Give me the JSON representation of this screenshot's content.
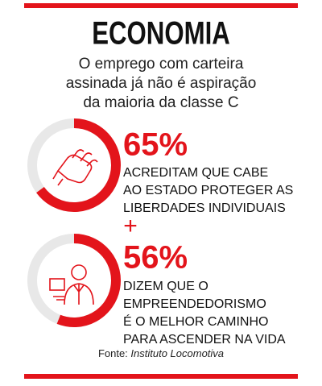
{
  "header": {
    "title": "ECONOMIA",
    "subtitle": [
      "O emprego com carteira",
      "assinada já não é aspiração",
      "da maioria da classe C"
    ]
  },
  "stats": [
    {
      "value": 65,
      "label": "65%",
      "text": [
        "ACREDITAM QUE CABE",
        "AO ESTADO PROTEGER AS",
        "LIBERDADES INDIVIDUAIS"
      ]
    },
    {
      "value": 56,
      "label": "56%",
      "text": [
        "DIZEM QUE O",
        "EMPREENDEDORISMO",
        "É O MELHOR CAMINHO",
        "PARA ASCENDER NA VIDA"
      ]
    }
  ],
  "separator": "+",
  "source": {
    "prefix": "Fonte:",
    "name": "Instituto Locomotiva"
  }
}
